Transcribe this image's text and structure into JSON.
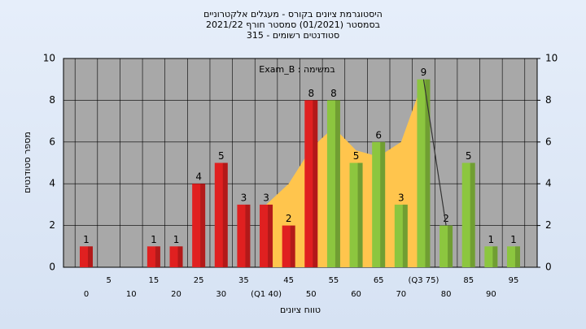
{
  "chart_data": {
    "type": "bar",
    "title": [
      "היסטוגרמת ציונים בקורס - מעגלים אלקטרוניים",
      "בסמסטר  (01/2021)  סמסטר חורף 2021/22",
      "סטודנטים רשומים - 315"
    ],
    "annotation": "במשימה : Exam_B",
    "y_label": "מספר סטודנטים",
    "x_label": "טווח ציונים",
    "categories": [
      "0",
      "5",
      "10",
      "15",
      "20",
      "25",
      "30",
      "35",
      "(Q1 40)",
      "45",
      "50",
      "55",
      "60",
      "65",
      "70",
      "(Q3 75)",
      "80",
      "85",
      "90",
      "95"
    ],
    "values": [
      1,
      0,
      0,
      1,
      1,
      4,
      5,
      3,
      3,
      2,
      8,
      8,
      5,
      6,
      3,
      9,
      2,
      5,
      1,
      1
    ],
    "colors": [
      "#e02020",
      "#e02020",
      "#e02020",
      "#e02020",
      "#e02020",
      "#e02020",
      "#e02020",
      "#e02020",
      "#e02020",
      "#e02020",
      "#e02020",
      "#8cc63f",
      "#8cc63f",
      "#8cc63f",
      "#8cc63f",
      "#8cc63f",
      "#8cc63f",
      "#8cc63f",
      "#8cc63f",
      "#8cc63f"
    ],
    "area": {
      "color": "#ffc54d",
      "values": [
        null,
        null,
        null,
        null,
        null,
        null,
        null,
        null,
        3,
        4,
        5.7,
        6.7,
        5.6,
        5.3,
        6,
        9,
        null,
        null,
        null,
        null
      ]
    },
    "line": {
      "color": "#333333",
      "values": [
        null,
        null,
        null,
        null,
        null,
        null,
        null,
        null,
        null,
        null,
        null,
        null,
        null,
        null,
        null,
        9,
        2,
        null,
        null,
        null
      ]
    },
    "ylim": [
      0,
      10
    ],
    "yticks": [
      0,
      2,
      4,
      6,
      8,
      10
    ],
    "y2lim": [
      0,
      10
    ],
    "y2ticks": [
      0,
      2,
      4,
      6,
      8,
      10
    ],
    "grid": true
  }
}
